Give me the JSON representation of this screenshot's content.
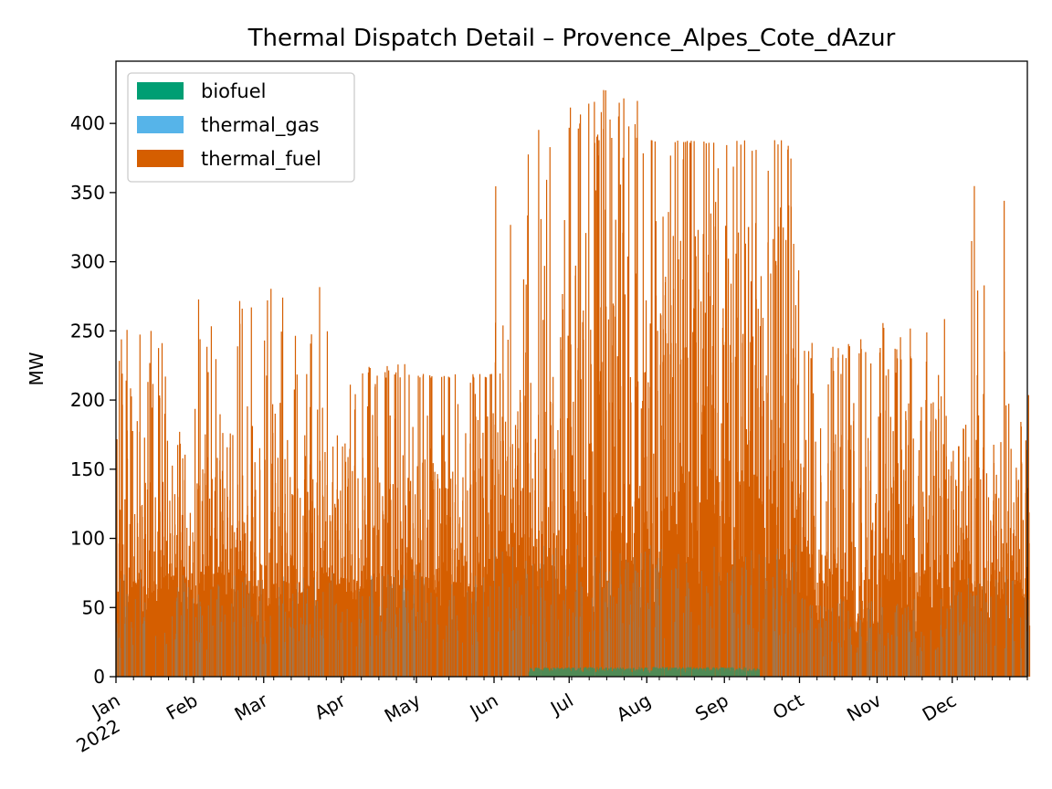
{
  "chart_data": {
    "type": "area",
    "title": "Thermal Dispatch Detail – Provence_Alpes_Cote_dAzur",
    "xlabel": "",
    "ylabel": "MW",
    "ylim": [
      0,
      445
    ],
    "yticks": [
      0,
      50,
      100,
      150,
      200,
      250,
      300,
      350,
      400
    ],
    "xlim": [
      "2022-01-01",
      "2022-12-31"
    ],
    "xtick_labels": [
      {
        "date": "2022-01-01",
        "label": "Jan",
        "label2": "2022"
      },
      {
        "date": "2022-02-01",
        "label": "Feb"
      },
      {
        "date": "2022-03-01",
        "label": "Mar"
      },
      {
        "date": "2022-04-01",
        "label": "Apr"
      },
      {
        "date": "2022-05-01",
        "label": "May"
      },
      {
        "date": "2022-06-01",
        "label": "Jun"
      },
      {
        "date": "2022-07-01",
        "label": "Jul"
      },
      {
        "date": "2022-08-01",
        "label": "Aug"
      },
      {
        "date": "2022-09-01",
        "label": "Sep"
      },
      {
        "date": "2022-10-01",
        "label": "Oct"
      },
      {
        "date": "2022-11-01",
        "label": "Nov"
      },
      {
        "date": "2022-12-01",
        "label": "Dec"
      }
    ],
    "grid": false,
    "legend_position": "top-left",
    "stacked": true,
    "series": [
      {
        "name": "biofuel",
        "color": "#009E73",
        "approx_peak": 7,
        "active_period": [
          "2022-06-15",
          "2022-09-15"
        ]
      },
      {
        "name": "thermal_gas",
        "color": "#56B4E9",
        "approx_peak": 0
      },
      {
        "name": "thermal_fuel",
        "color": "#D55E00"
      }
    ],
    "monthly_envelope": {
      "months": [
        "Jan",
        "Feb",
        "Mar",
        "Apr",
        "May",
        "Jun",
        "Jul",
        "Aug",
        "Sep",
        "Oct",
        "Nov",
        "Dec"
      ],
      "daily_peak_typical": [
        200,
        201,
        201,
        216,
        216,
        270,
        385,
        385,
        380,
        230,
        225,
        215
      ],
      "peak_max": [
        258,
        277,
        286,
        226,
        219,
        401,
        425,
        388,
        388,
        244,
        259,
        385
      ],
      "base_level": [
        64,
        64,
        64,
        64,
        64,
        80,
        80,
        80,
        80,
        48,
        48,
        64
      ]
    }
  }
}
